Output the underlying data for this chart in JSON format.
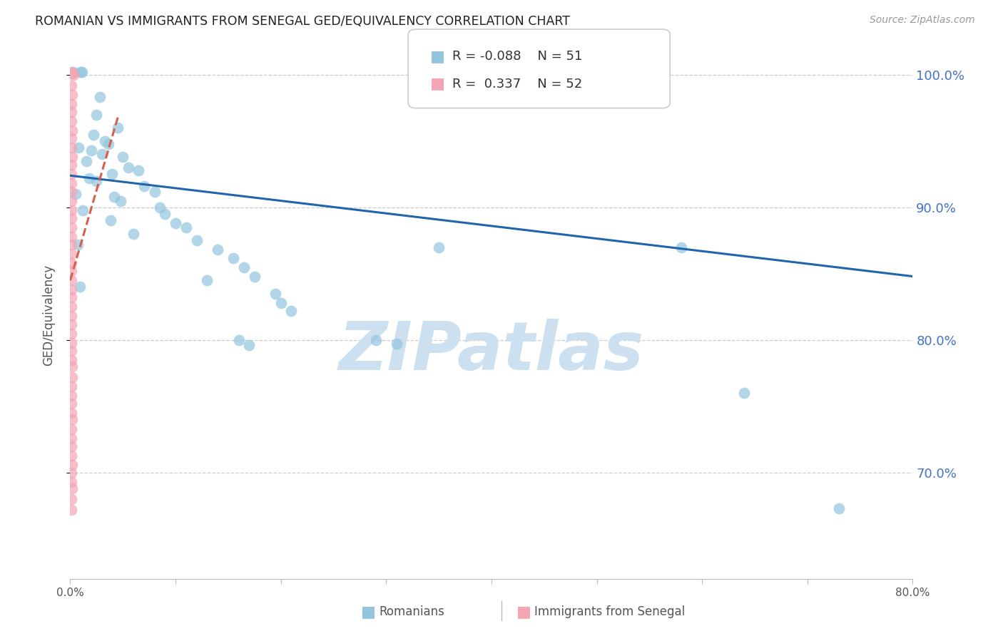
{
  "title": "ROMANIAN VS IMMIGRANTS FROM SENEGAL GED/EQUIVALENCY CORRELATION CHART",
  "source": "Source: ZipAtlas.com",
  "ylabel": "GED/Equivalency",
  "xmin": 0.0,
  "xmax": 0.8,
  "ymin": 0.62,
  "ymax": 1.018,
  "yticks": [
    0.7,
    0.8,
    0.9,
    1.0
  ],
  "ytick_labels": [
    "70.0%",
    "80.0%",
    "90.0%",
    "100.0%"
  ],
  "blue_color": "#92c5de",
  "pink_color": "#f4a5b5",
  "blue_line_color": "#2166ac",
  "pink_line_color": "#d6604d",
  "R_blue": -0.088,
  "N_blue": 51,
  "R_pink": 0.337,
  "N_pink": 52,
  "watermark_color": "#cce0f0",
  "blue_dots": [
    [
      0.003,
      1.002
    ],
    [
      0.01,
      1.002
    ],
    [
      0.011,
      1.002
    ],
    [
      0.395,
      1.001
    ],
    [
      0.028,
      0.983
    ],
    [
      0.025,
      0.97
    ],
    [
      0.045,
      0.96
    ],
    [
      0.022,
      0.955
    ],
    [
      0.033,
      0.95
    ],
    [
      0.036,
      0.948
    ],
    [
      0.008,
      0.945
    ],
    [
      0.02,
      0.943
    ],
    [
      0.03,
      0.94
    ],
    [
      0.05,
      0.938
    ],
    [
      0.015,
      0.935
    ],
    [
      0.055,
      0.93
    ],
    [
      0.065,
      0.928
    ],
    [
      0.04,
      0.925
    ],
    [
      0.018,
      0.922
    ],
    [
      0.025,
      0.92
    ],
    [
      0.07,
      0.916
    ],
    [
      0.08,
      0.912
    ],
    [
      0.005,
      0.91
    ],
    [
      0.042,
      0.908
    ],
    [
      0.048,
      0.905
    ],
    [
      0.085,
      0.9
    ],
    [
      0.012,
      0.898
    ],
    [
      0.09,
      0.895
    ],
    [
      0.038,
      0.89
    ],
    [
      0.1,
      0.888
    ],
    [
      0.11,
      0.885
    ],
    [
      0.06,
      0.88
    ],
    [
      0.12,
      0.875
    ],
    [
      0.007,
      0.872
    ],
    [
      0.14,
      0.868
    ],
    [
      0.155,
      0.862
    ],
    [
      0.165,
      0.855
    ],
    [
      0.175,
      0.848
    ],
    [
      0.13,
      0.845
    ],
    [
      0.009,
      0.84
    ],
    [
      0.195,
      0.835
    ],
    [
      0.2,
      0.828
    ],
    [
      0.21,
      0.822
    ],
    [
      0.16,
      0.8
    ],
    [
      0.17,
      0.796
    ],
    [
      0.29,
      0.8
    ],
    [
      0.31,
      0.797
    ],
    [
      0.35,
      0.87
    ],
    [
      0.58,
      0.87
    ],
    [
      0.64,
      0.76
    ],
    [
      0.73,
      0.673
    ]
  ],
  "pink_dots": [
    [
      0.001,
      1.002
    ],
    [
      0.002,
      1.001
    ],
    [
      0.003,
      1.0
    ],
    [
      0.001,
      0.992
    ],
    [
      0.002,
      0.985
    ],
    [
      0.001,
      0.978
    ],
    [
      0.001,
      0.972
    ],
    [
      0.001,
      0.965
    ],
    [
      0.002,
      0.958
    ],
    [
      0.001,
      0.952
    ],
    [
      0.001,
      0.945
    ],
    [
      0.002,
      0.938
    ],
    [
      0.001,
      0.932
    ],
    [
      0.001,
      0.925
    ],
    [
      0.001,
      0.918
    ],
    [
      0.001,
      0.912
    ],
    [
      0.001,
      0.905
    ],
    [
      0.001,
      0.898
    ],
    [
      0.001,
      0.892
    ],
    [
      0.001,
      0.885
    ],
    [
      0.001,
      0.878
    ],
    [
      0.001,
      0.872
    ],
    [
      0.001,
      0.865
    ],
    [
      0.001,
      0.858
    ],
    [
      0.001,
      0.852
    ],
    [
      0.001,
      0.845
    ],
    [
      0.001,
      0.838
    ],
    [
      0.001,
      0.832
    ],
    [
      0.001,
      0.825
    ],
    [
      0.001,
      0.818
    ],
    [
      0.001,
      0.812
    ],
    [
      0.001,
      0.805
    ],
    [
      0.001,
      0.798
    ],
    [
      0.001,
      0.792
    ],
    [
      0.001,
      0.785
    ],
    [
      0.002,
      0.78
    ],
    [
      0.002,
      0.772
    ],
    [
      0.001,
      0.765
    ],
    [
      0.001,
      0.758
    ],
    [
      0.001,
      0.752
    ],
    [
      0.001,
      0.745
    ],
    [
      0.002,
      0.74
    ],
    [
      0.001,
      0.733
    ],
    [
      0.001,
      0.726
    ],
    [
      0.001,
      0.72
    ],
    [
      0.001,
      0.713
    ],
    [
      0.002,
      0.706
    ],
    [
      0.001,
      0.7
    ],
    [
      0.001,
      0.693
    ],
    [
      0.002,
      0.688
    ],
    [
      0.001,
      0.68
    ],
    [
      0.001,
      0.672
    ]
  ],
  "blue_trend_x0": 0.0,
  "blue_trend_y0": 0.924,
  "blue_trend_x1": 0.8,
  "blue_trend_y1": 0.848,
  "pink_trend_x0": 0.0,
  "pink_trend_y0": 0.845,
  "pink_trend_x1": 0.046,
  "pink_trend_y1": 0.97
}
